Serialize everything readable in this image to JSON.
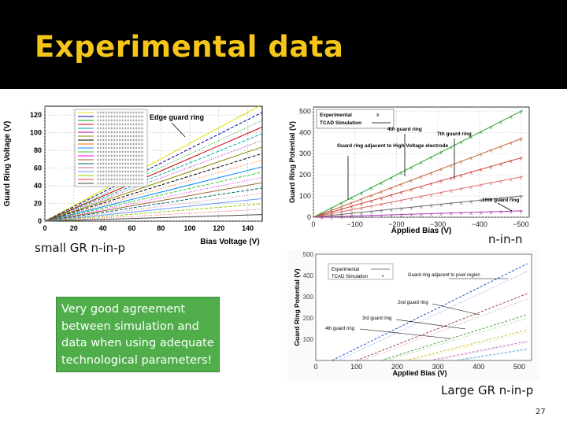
{
  "slide": {
    "title": "Experimental data",
    "caption_left": "small GR n-in-p",
    "caption_right": "n-in-n",
    "caption_bottom": "Large GR n-in-p",
    "note": "Very good agreement between simulation and data when using adequate technological parameters!",
    "page_number": "27",
    "colors": {
      "title": "#f5c518",
      "note_bg": "#4fae4a"
    }
  },
  "chart_data": [
    {
      "type": "line",
      "xlabel": "Bias Voltage (V)",
      "ylabel": "Guard Ring Voltage (V)",
      "xlim": [
        0,
        150
      ],
      "ylim": [
        0,
        130
      ],
      "xticks": [
        0,
        20,
        40,
        60,
        80,
        100,
        120,
        140
      ],
      "yticks": [
        0,
        20,
        40,
        60,
        80,
        100,
        120
      ],
      "annotation": "Edge guard ring",
      "grid": true,
      "legend": "top-left",
      "slopes": [
        0.88,
        0.82,
        0.76,
        0.71,
        0.66,
        0.61,
        0.56,
        0.51,
        0.46,
        0.41,
        0.37,
        0.33,
        0.29,
        0.25,
        0.21,
        0.17,
        0.13,
        0.09,
        0.05
      ],
      "series_colors": [
        "#e8e000",
        "#0000aa",
        "#00aa00",
        "#cc0000",
        "#00aaaa",
        "#aa00aa",
        "#888800",
        "#000000",
        "#ff6600",
        "#0088ff",
        "#33cc33",
        "#ff00ff",
        "#996633",
        "#006666",
        "#cc6699",
        "#6699ff",
        "#99cc00",
        "#ff3333",
        "#444444"
      ]
    },
    {
      "type": "scatter",
      "xlabel": "Applied Bias (V)",
      "ylabel": "Guard Ring Potential (V)",
      "xlim": [
        0,
        -520
      ],
      "ylim": [
        0,
        520
      ],
      "xticks": [
        0,
        -100,
        -200,
        -300,
        -400,
        -500
      ],
      "yticks": [
        0,
        100,
        200,
        300,
        400,
        500
      ],
      "legend_entries": [
        "Experimental",
        "TCAD Simulation"
      ],
      "legend": "top-left",
      "annotations": [
        "4th guard ring",
        "7th guard ring",
        "Guard ring adjacent to High Voltage electrode",
        "10th guard ring"
      ],
      "slopes": [
        1.0,
        0.74,
        0.56,
        0.38,
        0.2,
        0.06
      ],
      "series_colors": [
        "#2e9e3a",
        "#c0653a",
        "#d0403c",
        "#d97070",
        "#6a6a6a",
        "#b03fb0"
      ]
    },
    {
      "type": "line",
      "xlabel": "Applied Bias (V)",
      "ylabel": "Guard Ring Potential (V)",
      "xlim": [
        0,
        530
      ],
      "ylim": [
        0,
        500
      ],
      "xticks": [
        0,
        100,
        200,
        300,
        400,
        500
      ],
      "yticks": [
        100,
        200,
        300,
        400,
        500
      ],
      "legend_entries": [
        "Experimental",
        "TCAD Simulation"
      ],
      "legend": "top-left",
      "annotations": [
        "Guard ring adjacent to pixel region",
        "2nd guard ring",
        "3rd guard ring",
        "4th guard ring"
      ],
      "series": [
        {
          "offset": 40,
          "slope": 0.95
        },
        {
          "offset": 100,
          "slope": 0.75
        },
        {
          "offset": 160,
          "slope": 0.6
        },
        {
          "offset": 220,
          "slope": 0.48
        },
        {
          "offset": 280,
          "slope": 0.38
        },
        {
          "offset": 340,
          "slope": 0.3
        }
      ],
      "series_colors": [
        "#1f4fd0",
        "#a24040",
        "#50a040",
        "#c8c030",
        "#c070c0",
        "#70b0d0"
      ]
    }
  ]
}
